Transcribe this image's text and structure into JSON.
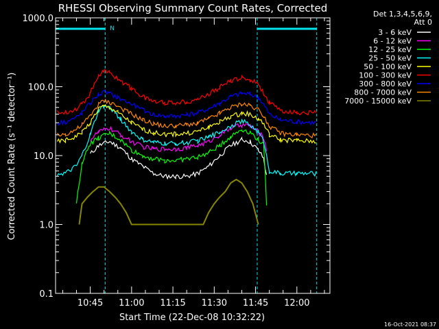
{
  "chart_data": {
    "type": "line",
    "title": "RHESSI Observing Summary Count Rates, Corrected",
    "xlabel": "Start Time (22-Dec-08 10:32:22)",
    "ylabel": "Corrected Count Rate (s⁻¹ detector⁻¹)",
    "x_ticks": [
      "10:45",
      "11:00",
      "11:15",
      "11:30",
      "11:45",
      "12:00"
    ],
    "x_tick_minutes": [
      645,
      660,
      675,
      690,
      705,
      720
    ],
    "xlim_minutes": [
      632.4,
      732
    ],
    "y_ticks": [
      "0.1",
      "1.0",
      "10.0",
      "100.0",
      "1000.0"
    ],
    "ylim": [
      0.1,
      1000
    ],
    "yscale": "log",
    "legend_header": [
      "Det 1,3,4,5,6,9,",
      "Att 0"
    ],
    "legend_position": "right",
    "footer_date": "16-Oct-2021 08:37",
    "annotation": "N",
    "night_intervals_minutes": [
      [
        632.4,
        650.4
      ],
      [
        705.6,
        727.2
      ]
    ],
    "series": [
      {
        "name": "3 - 6 keV",
        "color": "#ffffff",
        "x": [
          642,
          645,
          648,
          652,
          656,
          660,
          664,
          668,
          672,
          676,
          680,
          684,
          688,
          692,
          696,
          700,
          703,
          706,
          708,
          709
        ],
        "y": [
          null,
          10.5,
          14,
          16,
          13,
          9,
          7,
          5.5,
          5,
          5,
          5,
          5.5,
          7,
          10,
          14,
          17,
          16,
          12,
          9,
          5
        ]
      },
      {
        "name": "6 - 12 keV",
        "color": "#ff00ff",
        "x": [
          642,
          645,
          648,
          652,
          656,
          660,
          664,
          668,
          672,
          676,
          680,
          684,
          688,
          692,
          696,
          700,
          703,
          706,
          708,
          709
        ],
        "y": [
          null,
          17,
          22,
          25,
          20,
          16,
          13.5,
          12.5,
          12.5,
          12.5,
          13,
          14,
          16,
          20,
          25,
          28,
          27,
          22,
          18,
          12
        ]
      },
      {
        "name": "12 - 25 keV",
        "color": "#00ff00",
        "x": [
          640,
          642,
          645,
          648,
          652,
          656,
          660,
          664,
          668,
          672,
          676,
          680,
          684,
          688,
          692,
          696,
          700,
          703,
          706,
          708,
          709
        ],
        "y": [
          2,
          8,
          15,
          18,
          21,
          17,
          12,
          10,
          9,
          8.5,
          8.5,
          9,
          9.5,
          11,
          14,
          19,
          24,
          22,
          17,
          14,
          2
        ]
      },
      {
        "name": "25 - 50 keV",
        "color": "#00ffff",
        "x": [
          633,
          636,
          640,
          642,
          645,
          648,
          650,
          652,
          654,
          656,
          660,
          664,
          668,
          672,
          676,
          680,
          684,
          688,
          692,
          696,
          700,
          703,
          706,
          708,
          710,
          714,
          720,
          727
        ],
        "y": [
          5.5,
          5.5,
          7,
          10,
          20,
          45,
          52,
          50,
          42,
          34,
          22,
          17,
          15.5,
          15,
          15,
          15.5,
          16.5,
          18.5,
          22,
          27,
          32,
          28,
          22,
          16,
          6,
          5.5,
          5.5,
          5.5
        ]
      },
      {
        "name": "50 - 100 keV",
        "color": "#ffff00",
        "x": [
          633,
          636,
          640,
          642,
          645,
          648,
          650,
          652,
          655,
          660,
          664,
          668,
          672,
          676,
          680,
          684,
          688,
          692,
          696,
          700,
          703,
          706,
          708,
          710,
          714,
          720,
          727
        ],
        "y": [
          16,
          16.5,
          19,
          22,
          30,
          48,
          52,
          50,
          42,
          30,
          24,
          21.5,
          20.5,
          20.5,
          21,
          22.5,
          26,
          31,
          37,
          41,
          40,
          34,
          29,
          20,
          17,
          16.5,
          16
        ]
      },
      {
        "name": "100 - 300 keV",
        "color": "#ff0000",
        "x": [
          633,
          636,
          640,
          642,
          645,
          648,
          650,
          652,
          655,
          660,
          664,
          668,
          672,
          676,
          680,
          684,
          688,
          692,
          696,
          700,
          703,
          706,
          708,
          710,
          714,
          720,
          727
        ],
        "y": [
          42,
          43,
          48,
          56,
          80,
          150,
          168,
          160,
          130,
          95,
          72,
          62,
          59,
          59,
          61,
          66,
          78,
          98,
          122,
          135,
          128,
          110,
          80,
          58,
          45,
          42,
          42
        ]
      },
      {
        "name": "300 - 800 keV",
        "color": "#0000ff",
        "x": [
          633,
          636,
          640,
          642,
          645,
          648,
          650,
          652,
          655,
          660,
          664,
          668,
          672,
          676,
          680,
          684,
          688,
          692,
          696,
          700,
          703,
          706,
          708,
          710,
          714,
          720,
          727
        ],
        "y": [
          30,
          31,
          36,
          42,
          58,
          78,
          83,
          80,
          70,
          56,
          46,
          40,
          37.5,
          37.5,
          39,
          42,
          48,
          58,
          72,
          80,
          78,
          70,
          55,
          40,
          33,
          31,
          30
        ]
      },
      {
        "name": "800 - 7000 keV",
        "color": "#ff8800",
        "x": [
          633,
          636,
          640,
          642,
          645,
          648,
          650,
          652,
          655,
          660,
          664,
          668,
          672,
          676,
          680,
          684,
          688,
          692,
          696,
          700,
          703,
          706,
          708,
          710,
          714,
          720,
          727
        ],
        "y": [
          20,
          20.5,
          24,
          28,
          38,
          56,
          62,
          60,
          52,
          40,
          33,
          29,
          27,
          27,
          28,
          30,
          34,
          41,
          50,
          56,
          54,
          47,
          38,
          27,
          21,
          20,
          19.5
        ]
      },
      {
        "name": "7000 - 15000 keV",
        "color": "#888800",
        "x": [
          641,
          642,
          644,
          646,
          648,
          650,
          652,
          654,
          656,
          658,
          660,
          662,
          664,
          666,
          668,
          670,
          672,
          674,
          676,
          678,
          680,
          682,
          684,
          686,
          688,
          690,
          692,
          694,
          696,
          698,
          700,
          702,
          704,
          706
        ],
        "y": [
          1.0,
          2.0,
          2.5,
          3.0,
          3.5,
          3.5,
          3.0,
          2.5,
          2.0,
          1.5,
          1.0,
          1.0,
          1.0,
          1.0,
          1.0,
          1.0,
          1.0,
          1.0,
          1.0,
          1.0,
          1.0,
          1.0,
          1.0,
          1.0,
          1.5,
          2.0,
          2.5,
          3.0,
          4.0,
          4.5,
          4.0,
          3.0,
          2.0,
          1.0
        ]
      }
    ]
  }
}
